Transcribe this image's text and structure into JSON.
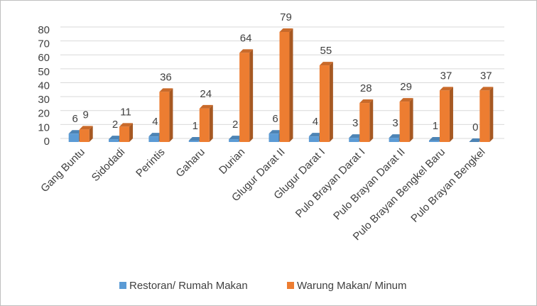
{
  "chart_data": {
    "type": "bar3d",
    "categories": [
      "Gang Buntu",
      "Sidodadi",
      "Perintis",
      "Gaharu",
      "Durian",
      "Glugur Darat II",
      "Glugur Darat I",
      "Pulo Brayan Darat I",
      "Pulo Brayan Darat II",
      "Pulo Brayan Bengkel Baru",
      "Pulo Brayan Bengkel"
    ],
    "series": [
      {
        "name": "Restoran/ Rumah Makan",
        "color": "#5b9bd5",
        "values": [
          6,
          2,
          4,
          1,
          2,
          6,
          4,
          3,
          3,
          1,
          0
        ]
      },
      {
        "name": "Warung Makan/ Minum",
        "color": "#ed7d31",
        "values": [
          9,
          11,
          36,
          24,
          64,
          79,
          55,
          28,
          29,
          37,
          37
        ]
      }
    ],
    "ylim": [
      0,
      80
    ],
    "yticks": [
      0,
      10,
      20,
      30,
      40,
      50,
      60,
      70,
      80
    ],
    "grid": true,
    "legend": "bottom"
  }
}
